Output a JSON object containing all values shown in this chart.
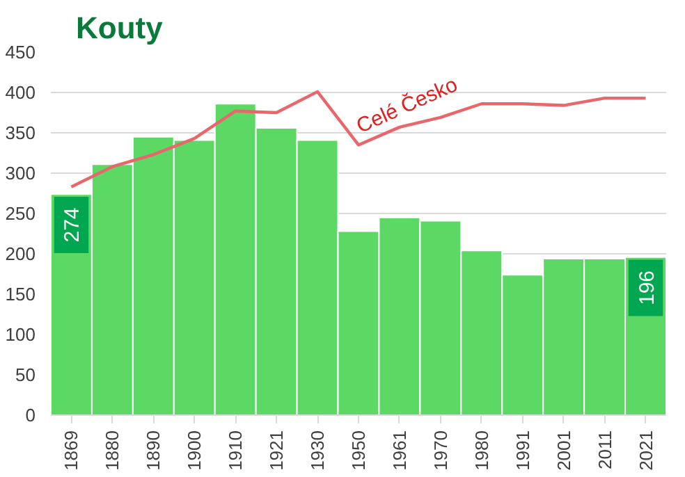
{
  "chart_data": {
    "type": "bar",
    "title": "Kouty",
    "categories": [
      "1869",
      "1880",
      "1890",
      "1900",
      "1910",
      "1921",
      "1930",
      "1950",
      "1961",
      "1970",
      "1980",
      "1991",
      "2001",
      "2011",
      "2021"
    ],
    "series": [
      {
        "color": "#5cd965",
        "values": [
          274,
          311,
          345,
          341,
          386,
          356,
          341,
          228,
          245,
          241,
          204,
          174,
          194,
          194,
          196
        ],
        "value_labels": [
          "274",
          null,
          null,
          null,
          null,
          null,
          null,
          null,
          null,
          null,
          null,
          null,
          null,
          null,
          "196"
        ]
      },
      {
        "type": "line",
        "name": "Celé Česko",
        "color": "#e8676a",
        "values": [
          283,
          308,
          323,
          343,
          377,
          375,
          401,
          335,
          357,
          369,
          386,
          386,
          384,
          393,
          393
        ]
      }
    ],
    "ylim": [
      0,
      450
    ],
    "yticks": [
      0,
      50,
      100,
      150,
      200,
      250,
      300,
      350,
      400,
      450
    ],
    "grid": "y"
  }
}
